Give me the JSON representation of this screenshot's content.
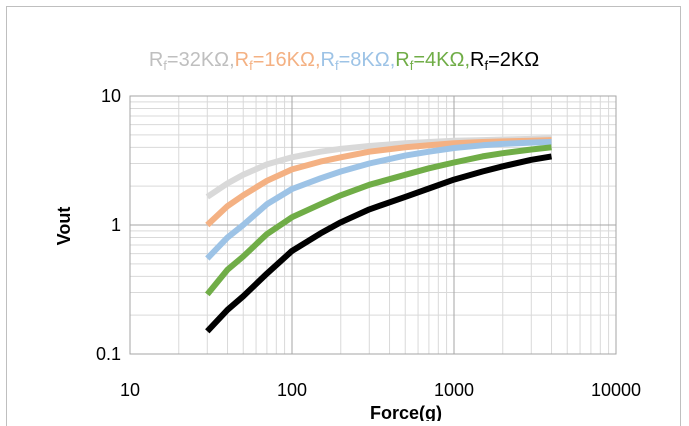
{
  "chart_data": {
    "type": "line",
    "title_parts": [
      {
        "text": "R",
        "sub": "f",
        "rest": "=32KΩ,",
        "color": "#bfbfbf"
      },
      {
        "text": "R",
        "sub": "f",
        "rest": "=16KΩ,",
        "color": "#f4b183"
      },
      {
        "text": "R",
        "sub": "f",
        "rest": "=8KΩ,",
        "color": "#9dc3e6"
      },
      {
        "text": "R",
        "sub": "f",
        "rest": "=4KΩ,",
        "color": "#70ad47"
      },
      {
        "text": "R",
        "sub": "f",
        "rest": "=2KΩ",
        "color": "#000000"
      }
    ],
    "xlabel": "Force(g)",
    "ylabel": "Vout",
    "x_scale": "log",
    "y_scale": "log",
    "xlim": [
      10,
      10000
    ],
    "ylim": [
      0.1,
      10
    ],
    "x_ticks": [
      10,
      100,
      1000,
      10000
    ],
    "x_tick_labels": [
      "10",
      "100",
      "1000",
      "10000"
    ],
    "y_ticks": [
      0.1,
      1,
      10
    ],
    "y_tick_labels": [
      "0.1",
      "1",
      "10"
    ],
    "grid": true,
    "x": [
      30,
      40,
      50,
      70,
      100,
      150,
      200,
      300,
      500,
      700,
      1000,
      1500,
      2000,
      3000,
      4000
    ],
    "series": [
      {
        "color": "#d9d9d9",
        "values": [
          1.65,
          2.1,
          2.45,
          2.95,
          3.35,
          3.7,
          3.9,
          4.1,
          4.3,
          4.4,
          4.5,
          4.55,
          4.6,
          4.65,
          4.7
        ]
      },
      {
        "color": "#f4b183",
        "values": [
          1.0,
          1.4,
          1.7,
          2.2,
          2.7,
          3.1,
          3.35,
          3.7,
          4.0,
          4.15,
          4.3,
          4.4,
          4.45,
          4.5,
          4.55
        ]
      },
      {
        "color": "#9dc3e6",
        "values": [
          0.55,
          0.8,
          1.0,
          1.45,
          1.9,
          2.3,
          2.6,
          3.0,
          3.45,
          3.7,
          3.95,
          4.15,
          4.25,
          4.35,
          4.4
        ]
      },
      {
        "color": "#70ad47",
        "values": [
          0.29,
          0.45,
          0.57,
          0.85,
          1.15,
          1.45,
          1.7,
          2.05,
          2.45,
          2.75,
          3.05,
          3.4,
          3.6,
          3.85,
          4.0
        ]
      },
      {
        "color": "#000000",
        "values": [
          0.15,
          0.22,
          0.28,
          0.42,
          0.63,
          0.86,
          1.05,
          1.32,
          1.65,
          1.92,
          2.25,
          2.6,
          2.85,
          3.2,
          3.4
        ]
      }
    ]
  }
}
